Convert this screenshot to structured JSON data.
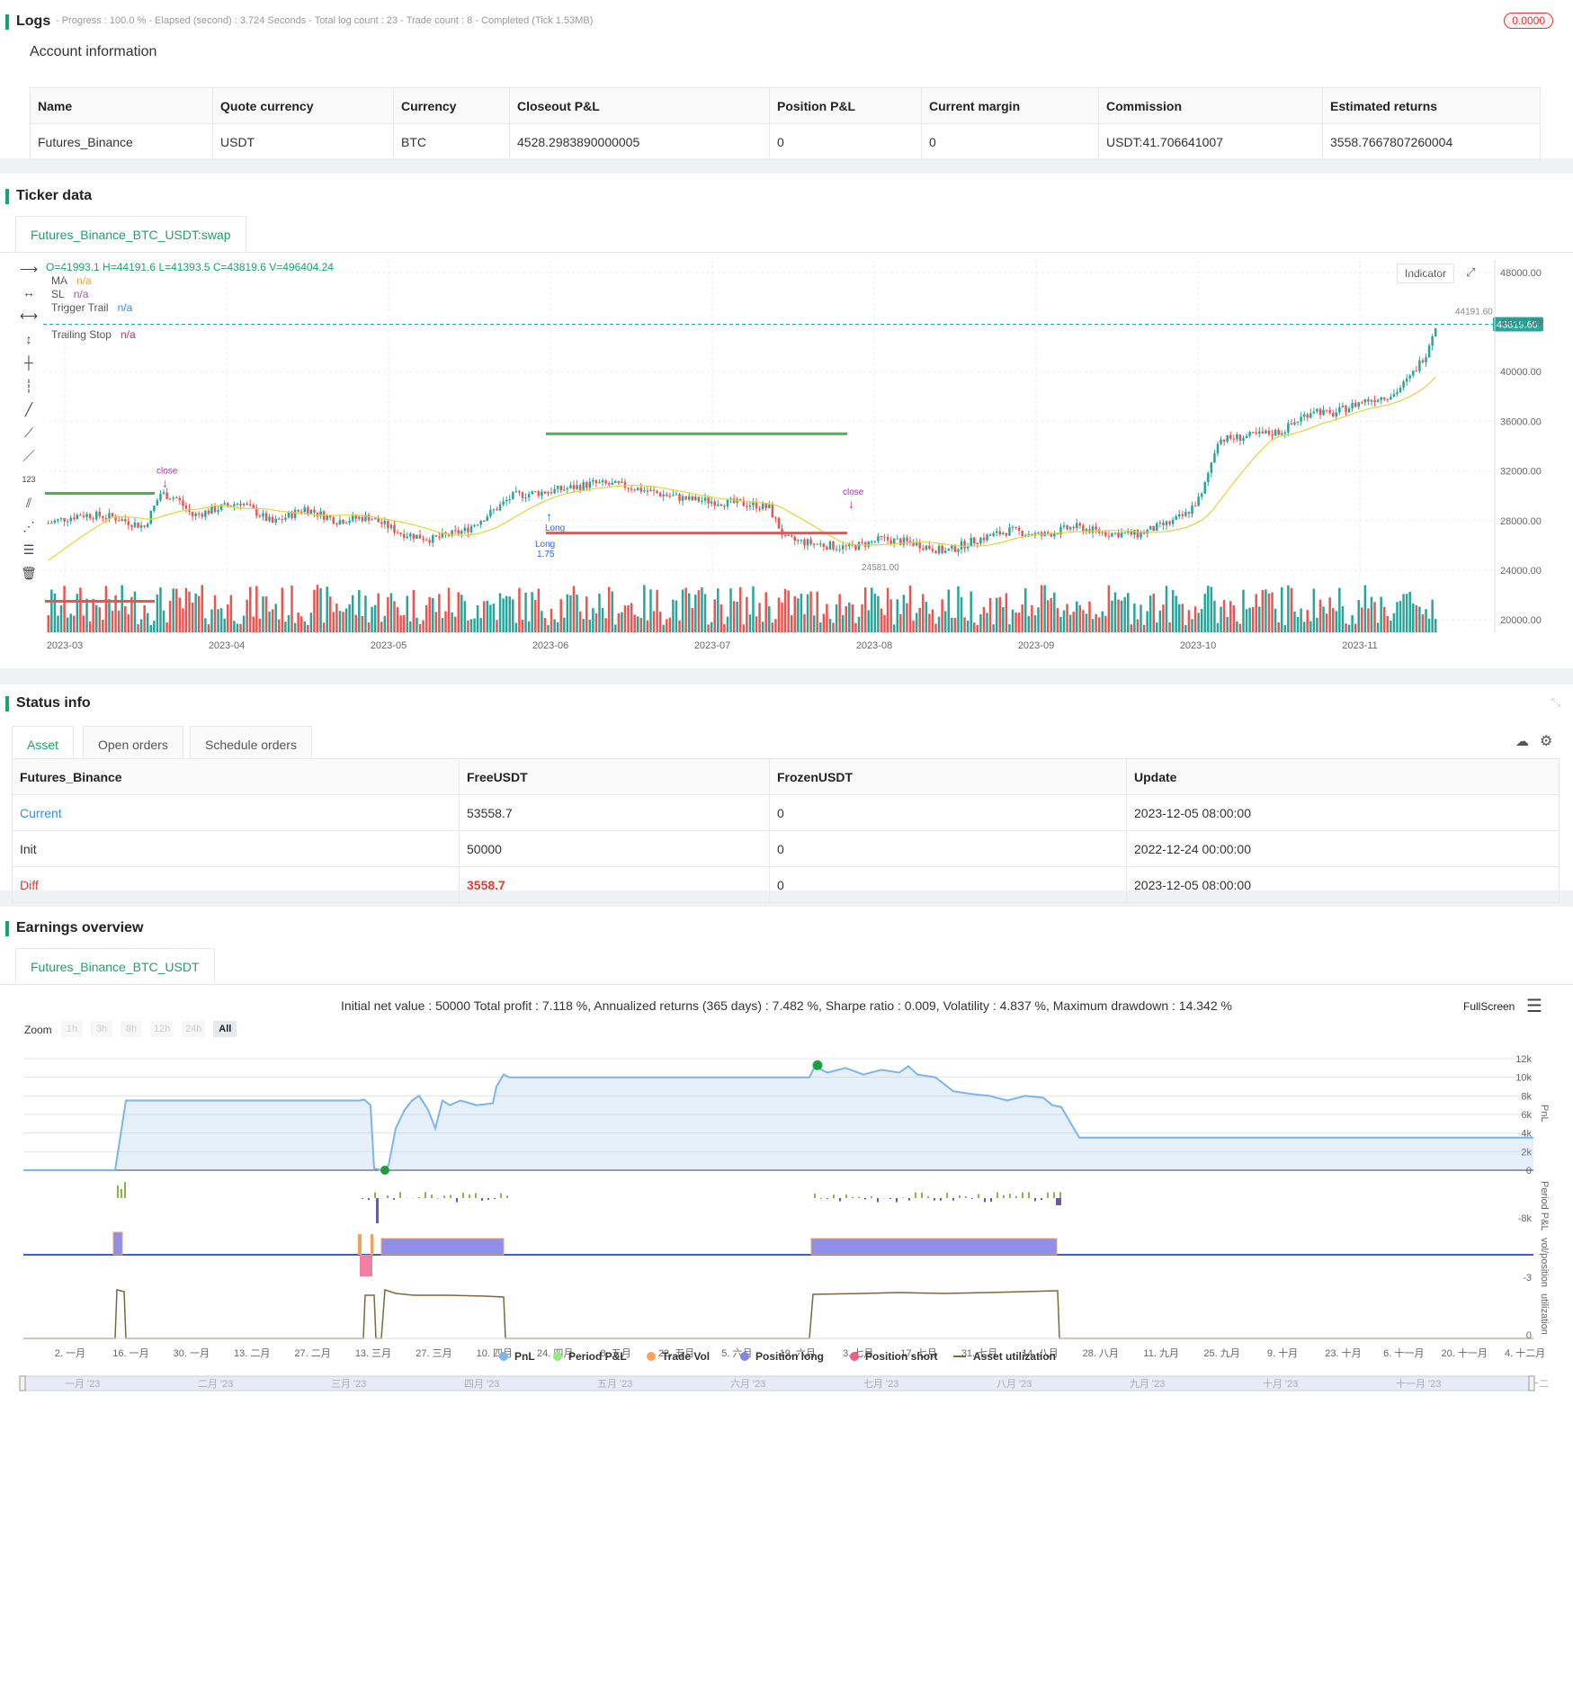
{
  "logs": {
    "title": "Logs",
    "status": "- Progress : 100.0 % - Elapsed (second) : 3.724  Seconds - Total log count : 23 - Trade count : 8 - Completed (Tick 1.53MB)",
    "badge": "0.0000",
    "account_title": "Account information",
    "columns": [
      "Name",
      "Quote currency",
      "Currency",
      "Closeout P&L",
      "Position P&L",
      "Current margin",
      "Commission",
      "Estimated returns"
    ],
    "row": [
      "Futures_Binance",
      "USDT",
      "BTC",
      "4528.2983890000005",
      "0",
      "0",
      "USDT:41.706641007",
      "3558.7667807260004"
    ]
  },
  "ticker": {
    "title": "Ticker data",
    "tab": "Futures_Binance_BTC_USDT:swap",
    "ohlc": "O=41993.1 H=44191.6 L=41393.5 C=43819.6 V=496404.24",
    "legend": [
      {
        "name": "MA",
        "value": "n/a",
        "color": "#e6a23c"
      },
      {
        "name": "SL",
        "value": "n/a",
        "color": "#9b59b6"
      },
      {
        "name": "Trigger Trail",
        "value": "n/a",
        "color": "#3a8ee6"
      },
      {
        "name": "Trailing Stop",
        "value": "n/a",
        "color": "#e91e63"
      }
    ],
    "indicator_btn": "Indicator",
    "price_ticks": [
      "48000.00",
      "44000.00",
      "40000.00",
      "36000.00",
      "32000.00",
      "28000.00",
      "24000.00",
      "20000.00"
    ],
    "last_price": "43819.60",
    "high_label": "44191.60",
    "low_label": "24581.00",
    "date_ticks": [
      "2023-03",
      "2023-04",
      "2023-05",
      "2023-06",
      "2023-07",
      "2023-08",
      "2023-09",
      "2023-10",
      "2023-11"
    ],
    "markers": {
      "close1": "close",
      "close2": "close",
      "long": "Long",
      "long_qty": "1.75",
      "long2": "Long"
    }
  },
  "status": {
    "title": "Status info",
    "tabs": [
      "Asset",
      "Open orders",
      "Schedule orders"
    ],
    "columns": [
      "Futures_Binance",
      "FreeUSDT",
      "FrozenUSDT",
      "Update"
    ],
    "rows": [
      [
        "Current",
        "53558.7",
        "0",
        "2023-12-05 08:00:00"
      ],
      [
        "Init",
        "50000",
        "0",
        "2022-12-24 00:00:00"
      ],
      [
        "Diff",
        "3558.7",
        "0",
        "2023-12-05 08:00:00"
      ]
    ]
  },
  "earnings": {
    "title": "Earnings overview",
    "tab": "Futures_Binance_BTC_USDT",
    "summary": "Initial net value : 50000 Total profit : 7.118 %, Annualized returns (365 days) : 7.482 %, Sharpe ratio : 0.009, Volatility : 4.837 %, Maximum drawdown : 14.342 %",
    "fullscreen": "FullScreen",
    "zoom_label": "Zoom",
    "zoom_options": [
      "1h",
      "3h",
      "8h",
      "12h",
      "24h",
      "All"
    ],
    "pnl_ticks": [
      "12k",
      "10k",
      "8k",
      "6k",
      "4k",
      "2k",
      "0"
    ],
    "axis_titles": [
      "PnL",
      "Period P&L",
      "vol/position",
      "utilization"
    ],
    "small_ticks": [
      "-8k",
      "-3",
      "0"
    ],
    "x_ticks": [
      "2. 一月",
      "16. 一月",
      "30. 一月",
      "13. 二月",
      "27. 二月",
      "13. 三月",
      "27. 三月",
      "10. 四月",
      "24. 四月",
      "8. 五月",
      "22. 五月",
      "5. 六月",
      "19. 六月",
      "3. 七月",
      "17. 七月",
      "31. 七月",
      "14. 八月",
      "28. 八月",
      "11. 九月",
      "25. 九月",
      "9. 十月",
      "23. 十月",
      "6. 十一月",
      "20. 十一月",
      "4. 十二月"
    ],
    "legend": [
      "PnL",
      "Period P&L",
      "Trade Vol",
      "Position long",
      "Position short",
      "Asset utilization"
    ],
    "navigator": [
      "一月 '23",
      "二月 '23",
      "三月 '23",
      "四月 '23",
      "五月 '23",
      "六月 '23",
      "七月 '23",
      "八月 '23",
      "九月 '23",
      "十月 '23",
      "十一月 '23",
      "十二"
    ]
  },
  "colors": {
    "accent": "#18a56b",
    "up": "#26a69a",
    "down": "#ef5350",
    "pnl": "#7cb5ec"
  }
}
